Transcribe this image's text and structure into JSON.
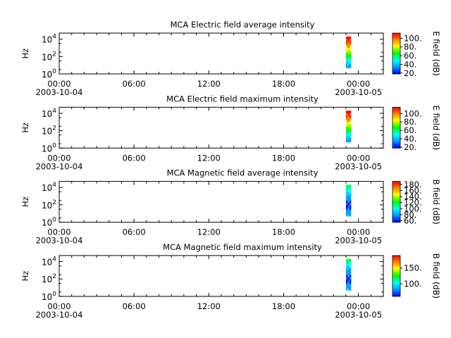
{
  "chart_data": [
    {
      "type": "heatmap",
      "title": "MCA  Electric field average intensity",
      "ylabel": "Hz",
      "yscale": "log",
      "ylim": [
        1,
        50000
      ],
      "y_ticks": [
        {
          "value": 1,
          "base": "10",
          "exp": "0"
        },
        {
          "value": 100,
          "base": "10",
          "exp": "2"
        },
        {
          "value": 10000,
          "base": "10",
          "exp": "4"
        }
      ],
      "xlim_hours": [
        0,
        26
      ],
      "x_ticks": [
        {
          "hour": 0,
          "label": "00:00",
          "date": "2003-10-04"
        },
        {
          "hour": 6,
          "label": "06:00",
          "date": ""
        },
        {
          "hour": 12,
          "label": "12:00",
          "date": ""
        },
        {
          "hour": 18,
          "label": "18:00",
          "date": ""
        },
        {
          "hour": 24,
          "label": "00:00",
          "date": "2003-10-05"
        }
      ],
      "data_window_hours": [
        23.0,
        23.4
      ],
      "data_freq_range_hz": [
        5,
        20000
      ],
      "colorbar": {
        "label": "E field (dB)",
        "range": [
          18,
          112
        ],
        "ticks": [
          "20.",
          "40.",
          "60.",
          "80.",
          "100."
        ],
        "tick_values": [
          20,
          40,
          60,
          80,
          100
        ]
      }
    },
    {
      "type": "heatmap",
      "title": "MCA  Electric field maximum intensity",
      "ylabel": "Hz",
      "yscale": "log",
      "ylim": [
        1,
        50000
      ],
      "y_ticks": [
        {
          "value": 1,
          "base": "10",
          "exp": "0"
        },
        {
          "value": 100,
          "base": "10",
          "exp": "2"
        },
        {
          "value": 10000,
          "base": "10",
          "exp": "4"
        }
      ],
      "xlim_hours": [
        0,
        26
      ],
      "x_ticks": [
        {
          "hour": 0,
          "label": "00:00",
          "date": "2003-10-04"
        },
        {
          "hour": 6,
          "label": "06:00",
          "date": ""
        },
        {
          "hour": 12,
          "label": "12:00",
          "date": ""
        },
        {
          "hour": 18,
          "label": "18:00",
          "date": ""
        },
        {
          "hour": 24,
          "label": "00:00",
          "date": "2003-10-05"
        }
      ],
      "data_window_hours": [
        23.0,
        23.4
      ],
      "data_freq_range_hz": [
        5,
        20000
      ],
      "colorbar": {
        "label": "E field (dB)",
        "range": [
          18,
          115
        ],
        "ticks": [
          "20.",
          "40.",
          "60.",
          "80.",
          "100."
        ],
        "tick_values": [
          20,
          40,
          60,
          80,
          100
        ]
      }
    },
    {
      "type": "heatmap",
      "title": "MCA  Magnetic field average intensity",
      "ylabel": "Hz",
      "yscale": "log",
      "ylim": [
        1,
        50000
      ],
      "y_ticks": [
        {
          "value": 1,
          "base": "10",
          "exp": "0"
        },
        {
          "value": 100,
          "base": "10",
          "exp": "2"
        },
        {
          "value": 10000,
          "base": "10",
          "exp": "4"
        }
      ],
      "xlim_hours": [
        0,
        26
      ],
      "x_ticks": [
        {
          "hour": 0,
          "label": "00:00",
          "date": "2003-10-04"
        },
        {
          "hour": 6,
          "label": "06:00",
          "date": ""
        },
        {
          "hour": 12,
          "label": "12:00",
          "date": ""
        },
        {
          "hour": 18,
          "label": "18:00",
          "date": ""
        },
        {
          "hour": 24,
          "label": "00:00",
          "date": "2003-10-05"
        }
      ],
      "data_window_hours": [
        23.0,
        23.4
      ],
      "data_freq_range_hz": [
        5,
        20000
      ],
      "colorbar": {
        "label": "B field (dB)",
        "range": [
          55,
          190
        ],
        "ticks": [
          "60.",
          "80.",
          "100.",
          "120.",
          "140.",
          "160.",
          "180."
        ],
        "tick_values": [
          60,
          80,
          100,
          120,
          140,
          160,
          180
        ]
      }
    },
    {
      "type": "heatmap",
      "title": "MCA  Magnetic field maximum intensity",
      "ylabel": "Hz",
      "yscale": "log",
      "ylim": [
        1,
        50000
      ],
      "y_ticks": [
        {
          "value": 1,
          "base": "10",
          "exp": "0"
        },
        {
          "value": 100,
          "base": "10",
          "exp": "2"
        },
        {
          "value": 10000,
          "base": "10",
          "exp": "4"
        }
      ],
      "xlim_hours": [
        0,
        26
      ],
      "x_ticks": [
        {
          "hour": 0,
          "label": "00:00",
          "date": "2003-10-04"
        },
        {
          "hour": 6,
          "label": "06:00",
          "date": ""
        },
        {
          "hour": 12,
          "label": "12:00",
          "date": ""
        },
        {
          "hour": 18,
          "label": "18:00",
          "date": ""
        },
        {
          "hour": 24,
          "label": "00:00",
          "date": "2003-10-05"
        }
      ],
      "data_window_hours": [
        23.0,
        23.4
      ],
      "data_freq_range_hz": [
        5,
        20000
      ],
      "colorbar": {
        "label": "B field (dB)",
        "range": [
          60,
          190
        ],
        "ticks": [
          "100.",
          "150."
        ],
        "tick_values": [
          100,
          150
        ]
      }
    }
  ],
  "colormap": [
    "#0000ff",
    "#00a0ff",
    "#00ffff",
    "#00ff00",
    "#ffff00",
    "#ff8000",
    "#ff0000"
  ]
}
